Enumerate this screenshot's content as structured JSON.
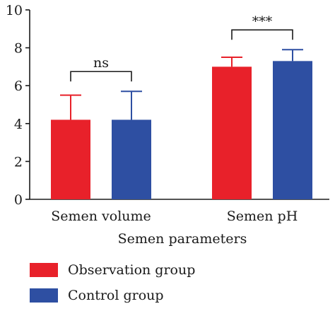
{
  "chart_data": {
    "type": "bar",
    "categories": [
      "Semen volume",
      "Semen pH"
    ],
    "series": [
      {
        "name": "Observation group",
        "color": "#e8212a",
        "values": [
          4.2,
          7.0
        ],
        "errors": [
          1.3,
          0.5
        ]
      },
      {
        "name": "Control group",
        "color": "#2e4fa2",
        "values": [
          4.2,
          7.3
        ],
        "errors": [
          1.5,
          0.6
        ]
      }
    ],
    "xlabel": "Semen parameters",
    "ylabel": "",
    "ylim": [
      0,
      10
    ],
    "yticks": [
      0,
      2,
      4,
      6,
      8,
      10
    ],
    "significance": [
      "ns",
      "***"
    ],
    "grid": false,
    "legend_position": "bottom-left"
  }
}
